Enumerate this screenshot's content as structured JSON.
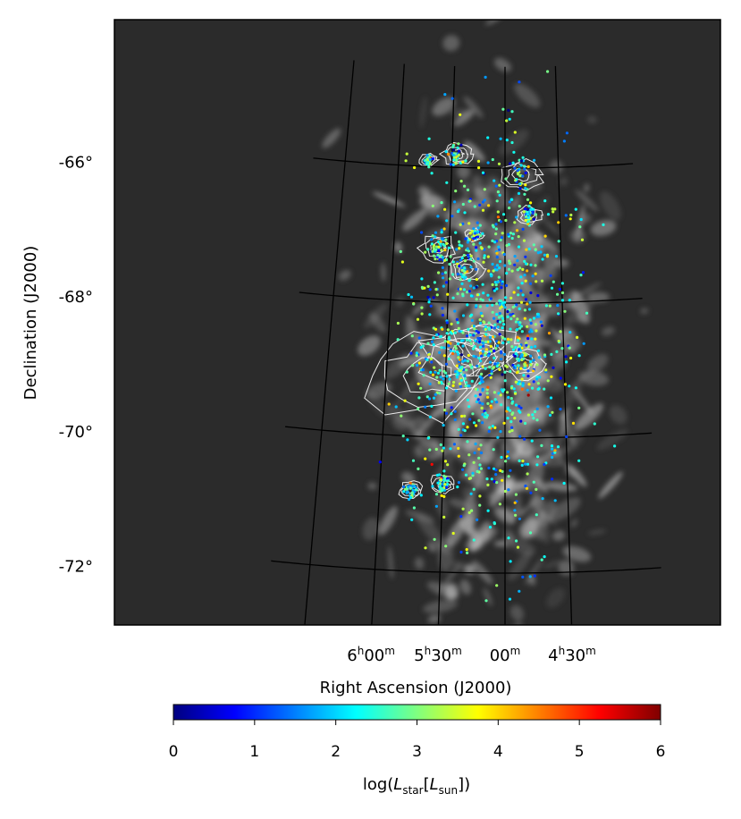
{
  "chart_data": {
    "type": "scatter",
    "title": "",
    "xlabel": "Right Ascension (J2000)",
    "ylabel": "Declination (J2000)",
    "xlim_ra_hours": [
      4.3,
      6.3
    ],
    "ylim_dec_deg": [
      -72.9,
      -64.9
    ],
    "x_ticks": [
      {
        "ra_h": 6.0,
        "h": "6",
        "m": "00"
      },
      {
        "ra_h": 5.5,
        "h": "5",
        "m": "30"
      },
      {
        "ra_h": 5.0,
        "h": "",
        "m": "00"
      },
      {
        "ra_h": 4.5,
        "h": "4",
        "m": "30"
      }
    ],
    "y_ticks": [
      {
        "dec": -66,
        "label": "-66°"
      },
      {
        "dec": -68,
        "label": "-68°"
      },
      {
        "dec": -70,
        "label": "-70°"
      },
      {
        "dec": -72,
        "label": "-72°"
      }
    ],
    "background": "grayscale H I map with white contours",
    "colorbar": {
      "label_prefix": "log(",
      "L": "L",
      "sub_star": "star",
      "sub_sun": "sun",
      "label_open": "[",
      "label_close": "])",
      "min": 0,
      "max": 6,
      "ticks": [
        "0",
        "1",
        "2",
        "3",
        "4",
        "5",
        "6"
      ],
      "colormap": "jet",
      "position": "bottom"
    },
    "contour_regions": [
      {
        "ra": 5.65,
        "dec": -69.1,
        "size": 1.0
      },
      {
        "ra": 5.35,
        "dec": -68.8,
        "size": 0.7
      },
      {
        "ra": 5.18,
        "dec": -68.6,
        "size": 0.5
      },
      {
        "ra": 4.85,
        "dec": -66.1,
        "size": 0.35
      },
      {
        "ra": 4.78,
        "dec": -66.7,
        "size": 0.2
      },
      {
        "ra": 4.85,
        "dec": -68.9,
        "size": 0.35
      },
      {
        "ra": 5.35,
        "dec": -67.5,
        "size": 0.3
      },
      {
        "ra": 5.45,
        "dec": -65.8,
        "size": 0.25
      },
      {
        "ra": 5.6,
        "dec": -67.2,
        "size": 0.3
      },
      {
        "ra": 5.5,
        "dec": -70.7,
        "size": 0.22
      },
      {
        "ra": 5.75,
        "dec": -70.8,
        "size": 0.2
      },
      {
        "ra": 5.28,
        "dec": -67.0,
        "size": 0.15
      },
      {
        "ra": 5.72,
        "dec": -65.9,
        "size": 0.15
      }
    ],
    "n_points_shown": 1400,
    "series": []
  }
}
